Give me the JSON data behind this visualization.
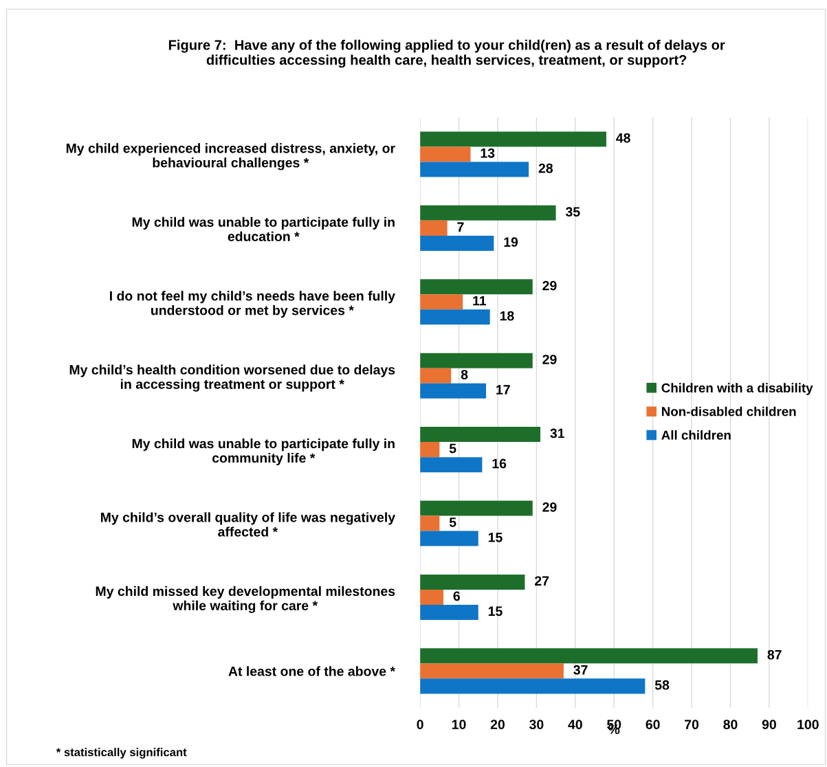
{
  "chart_data": {
    "type": "bar",
    "orientation": "horizontal",
    "title": "Figure 7:  Have any of the following applied to your child(ren) as a result of delays or\ndifficulties accessing health care, health services, treatment, or support?",
    "categories": [
      "My child experienced increased distress, anxiety, or\nbehavioural challenges *",
      "My child was unable to participate fully in\neducation *",
      "I do not feel my child’s needs have been fully\nunderstood or met by services *",
      "My child’s health condition worsened due to delays\nin accessing treatment or support *",
      "My child was unable to participate fully in\ncommunity life *",
      "My child’s overall quality of life was negatively\naffected *",
      "My child missed key developmental milestones\nwhile waiting for care *",
      "At least one of the above *"
    ],
    "series": [
      {
        "name": "Children with a disability",
        "color": "#1e6e2b",
        "values": [
          48,
          35,
          29,
          29,
          31,
          29,
          27,
          87
        ]
      },
      {
        "name": "Non-disabled children",
        "color": "#e97132",
        "values": [
          13,
          7,
          11,
          8,
          5,
          5,
          6,
          37
        ]
      },
      {
        "name": "All children",
        "color": "#0f75c7",
        "values": [
          28,
          19,
          18,
          17,
          16,
          15,
          15,
          58
        ]
      }
    ],
    "xlabel": "%",
    "xlim": [
      0,
      100
    ],
    "xticks": [
      0,
      10,
      20,
      30,
      40,
      50,
      60,
      70,
      80,
      90,
      100
    ],
    "grid": "x",
    "legend": "right",
    "data_labels": true,
    "annotations": [
      "* statistically significant"
    ]
  }
}
